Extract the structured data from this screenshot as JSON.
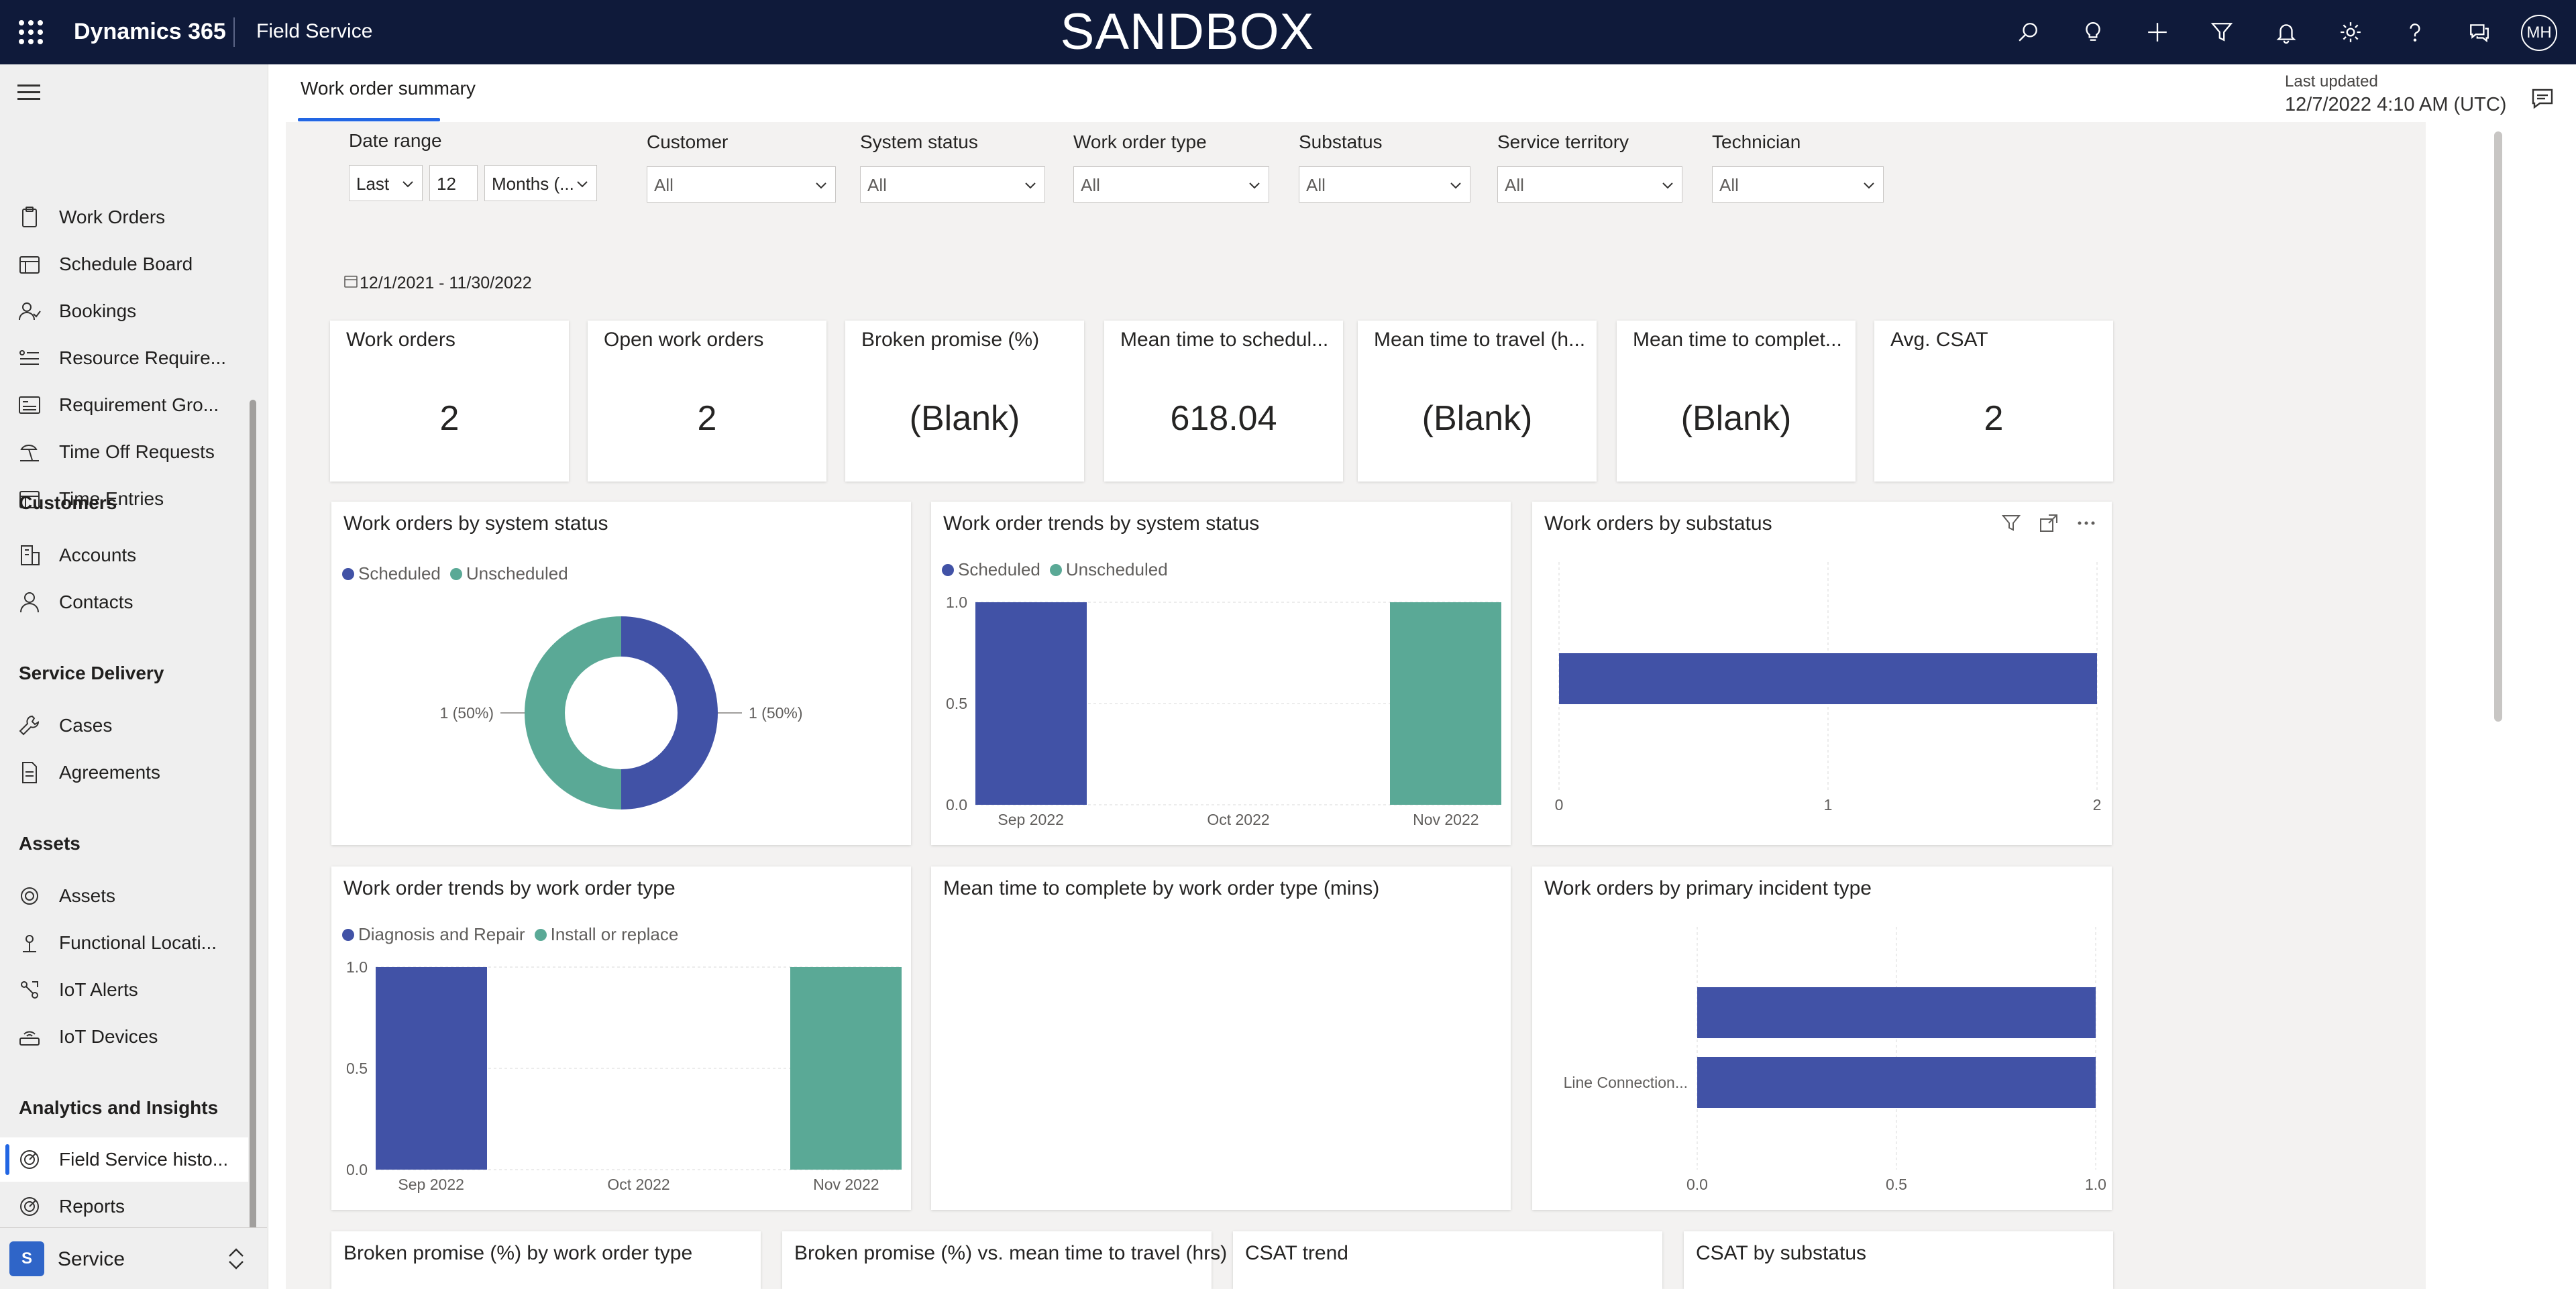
{
  "topbar": {
    "brand": "Dynamics 365",
    "app": "Field Service",
    "environment": "SANDBOX",
    "avatar_initials": "MH",
    "icons": [
      "search-icon",
      "lightbulb-icon",
      "plus-icon",
      "filter-icon",
      "bell-icon",
      "gear-icon",
      "help-icon",
      "chat-icon"
    ]
  },
  "sidebar": {
    "items": [
      {
        "label": "Work Orders",
        "icon": "clipboard-icon"
      },
      {
        "label": "Schedule Board",
        "icon": "calendar-icon"
      },
      {
        "label": "Bookings",
        "icon": "people-icon"
      },
      {
        "label": "Resource Require...",
        "icon": "list-icon"
      },
      {
        "label": "Requirement Gro...",
        "icon": "group-list-icon"
      },
      {
        "label": "Time Off Requests",
        "icon": "beach-icon"
      },
      {
        "label": "Time Entries",
        "icon": "calendar-icon"
      }
    ],
    "sections": [
      {
        "title": "Customers",
        "items": [
          {
            "label": "Accounts",
            "icon": "building-icon"
          },
          {
            "label": "Contacts",
            "icon": "person-icon"
          }
        ]
      },
      {
        "title": "Service Delivery",
        "items": [
          {
            "label": "Cases",
            "icon": "wrench-icon"
          },
          {
            "label": "Agreements",
            "icon": "document-icon"
          }
        ]
      },
      {
        "title": "Assets",
        "items": [
          {
            "label": "Assets",
            "icon": "gear-box-icon"
          },
          {
            "label": "Functional Locati...",
            "icon": "location-icon"
          },
          {
            "label": "IoT Alerts",
            "icon": "iot-alert-icon"
          },
          {
            "label": "IoT Devices",
            "icon": "router-icon"
          }
        ]
      },
      {
        "title": "Analytics and Insights",
        "items": [
          {
            "label": "Field Service histo...",
            "icon": "analytics-icon",
            "active": true
          },
          {
            "label": "Reports",
            "icon": "report-icon"
          }
        ]
      }
    ],
    "area": {
      "badge": "S",
      "label": "Service"
    }
  },
  "main": {
    "tab": "Work order summary",
    "last_updated_label": "Last updated",
    "last_updated_value": "12/7/2022 4:10 AM (UTC)"
  },
  "filters": {
    "date_range": {
      "label": "Date range",
      "mode": "Last",
      "count": "12",
      "unit": "Months (...",
      "range_text": "12/1/2021 - 11/30/2022"
    },
    "slicers": [
      {
        "label": "Customer",
        "value": "All"
      },
      {
        "label": "System status",
        "value": "All"
      },
      {
        "label": "Work order type",
        "value": "All"
      },
      {
        "label": "Substatus",
        "value": "All"
      },
      {
        "label": "Service territory",
        "value": "All"
      },
      {
        "label": "Technician",
        "value": "All"
      }
    ]
  },
  "kpis": [
    {
      "title": "Work orders",
      "value": "2"
    },
    {
      "title": "Open work orders",
      "value": "2"
    },
    {
      "title": "Broken promise (%)",
      "value": "(Blank)"
    },
    {
      "title": "Mean time to schedul...",
      "value": "618.04"
    },
    {
      "title": "Mean time to travel (h...",
      "value": "(Blank)"
    },
    {
      "title": "Mean time to complet...",
      "value": "(Blank)"
    },
    {
      "title": "Avg. CSAT",
      "value": "2"
    }
  ],
  "colors": {
    "series1": "#4152a6",
    "series2": "#5aa996",
    "grid": "#d9d9d9",
    "accent": "#2266e3"
  },
  "charts": {
    "status_donut": {
      "title": "Work orders by system status"
    },
    "status_trend": {
      "title": "Work order trends by system status"
    },
    "substatus_bar": {
      "title": "Work orders by substatus"
    },
    "type_trend": {
      "title": "Work order trends by work order type"
    },
    "mean_time_complete": {
      "title": "Mean time to complete by work order type (mins)"
    },
    "incident_bar": {
      "title": "Work orders by primary incident type"
    },
    "bottom": [
      {
        "title": "Broken promise (%) by work order type"
      },
      {
        "title": "Broken promise (%) vs. mean time to travel (hrs)"
      },
      {
        "title": "CSAT trend"
      },
      {
        "title": "CSAT by substatus"
      }
    ]
  },
  "chart_data": [
    {
      "type": "pie",
      "title": "Work orders by system status",
      "series": [
        {
          "name": "Scheduled",
          "value": 1
        },
        {
          "name": "Unscheduled",
          "value": 1
        }
      ],
      "slice_labels": [
        "1 (50%)",
        "1 (50%)"
      ],
      "legend": "top-left"
    },
    {
      "type": "bar",
      "title": "Work order trends by system status",
      "categories": [
        "Sep 2022",
        "Oct 2022",
        "Nov 2022"
      ],
      "series": [
        {
          "name": "Scheduled",
          "values": [
            1,
            0,
            0
          ]
        },
        {
          "name": "Unscheduled",
          "values": [
            0,
            0,
            1
          ]
        }
      ],
      "ylim": [
        0,
        1
      ],
      "yticks": [
        "0.0",
        "0.5",
        "1.0"
      ],
      "legend": "top-left"
    },
    {
      "type": "bar",
      "orientation": "horizontal",
      "title": "Work orders by substatus",
      "categories": [
        ""
      ],
      "values": [
        2
      ],
      "xlim": [
        0,
        2
      ],
      "xticks": [
        "0",
        "1",
        "2"
      ]
    },
    {
      "type": "bar",
      "title": "Work order trends by work order type",
      "categories": [
        "Sep 2022",
        "Oct 2022",
        "Nov 2022"
      ],
      "series": [
        {
          "name": "Diagnosis and Repair",
          "values": [
            1,
            0,
            0
          ]
        },
        {
          "name": "Install or replace",
          "values": [
            0,
            0,
            1
          ]
        }
      ],
      "ylim": [
        0,
        1
      ],
      "yticks": [
        "0.0",
        "0.5",
        "1.0"
      ],
      "legend": "top-left"
    },
    {
      "type": "bar",
      "orientation": "horizontal",
      "title": "Work orders by primary incident type",
      "categories": [
        "",
        "Line Connection..."
      ],
      "values": [
        1,
        1
      ],
      "xlim": [
        0,
        1
      ],
      "xticks": [
        "0.0",
        "0.5",
        "1.0"
      ]
    }
  ]
}
